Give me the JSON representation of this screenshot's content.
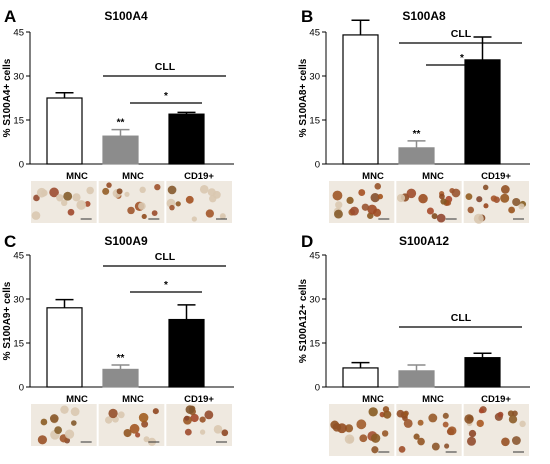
{
  "panels": [
    {
      "letter": "A",
      "title": "S100A4",
      "categories": [
        "MNC",
        "MNC",
        "CD19+"
      ]
    },
    {
      "letter": "B",
      "title": "S100A8",
      "categories": [
        "MNC",
        "MNC",
        "CD19+"
      ]
    },
    {
      "letter": "C",
      "title": "S100A9",
      "categories": [
        "MNC",
        "MNC",
        "CD19+"
      ]
    },
    {
      "letter": "D",
      "title": "S100A12",
      "categories": [
        "MNC",
        "MNC",
        "CD19+"
      ]
    }
  ],
  "colors": {
    "bar1": "#ffffff",
    "bar2": "#8c8c8c",
    "bar3": "#000000",
    "stroke": "#000000"
  },
  "chart_data": [
    {
      "type": "bar",
      "title": "S100A4",
      "ylabel": "% S100A4+ cells",
      "categories": [
        "MNC",
        "MNC",
        "CD19+"
      ],
      "values": [
        22.5,
        9.5,
        17
      ],
      "errors": [
        1.8,
        2.2,
        0.6
      ],
      "ylim": [
        0,
        45
      ],
      "yticks": [
        0,
        15,
        30,
        45
      ],
      "bracket_label": "CLL",
      "annotations": [
        "**",
        "*"
      ]
    },
    {
      "type": "bar",
      "title": "S100A8",
      "ylabel": "% S100A8+ cells",
      "categories": [
        "MNC",
        "MNC",
        "CD19+"
      ],
      "values": [
        44,
        5.5,
        35.5
      ],
      "errors": [
        5,
        2.4,
        7.8
      ],
      "ylim": [
        0,
        45
      ],
      "yticks": [
        0,
        15,
        30,
        45
      ],
      "bracket_label": "CLL",
      "annotations": [
        "**",
        "*"
      ]
    },
    {
      "type": "bar",
      "title": "S100A9",
      "ylabel": "% S100A9+ cells",
      "categories": [
        "MNC",
        "MNC",
        "CD19+"
      ],
      "values": [
        27,
        6,
        23
      ],
      "errors": [
        2.8,
        1.5,
        5
      ],
      "ylim": [
        0,
        45
      ],
      "yticks": [
        0,
        15,
        30,
        45
      ],
      "bracket_label": "CLL",
      "annotations": [
        "**",
        "*"
      ]
    },
    {
      "type": "bar",
      "title": "S100A12",
      "ylabel": "% S100A12+ cells",
      "categories": [
        "MNC",
        "MNC",
        "CD19+"
      ],
      "values": [
        6.5,
        5.5,
        10
      ],
      "errors": [
        1.8,
        2,
        1.5
      ],
      "ylim": [
        0,
        45
      ],
      "yticks": [
        0,
        15,
        30,
        45
      ],
      "bracket_label": "CLL",
      "annotations": []
    }
  ]
}
